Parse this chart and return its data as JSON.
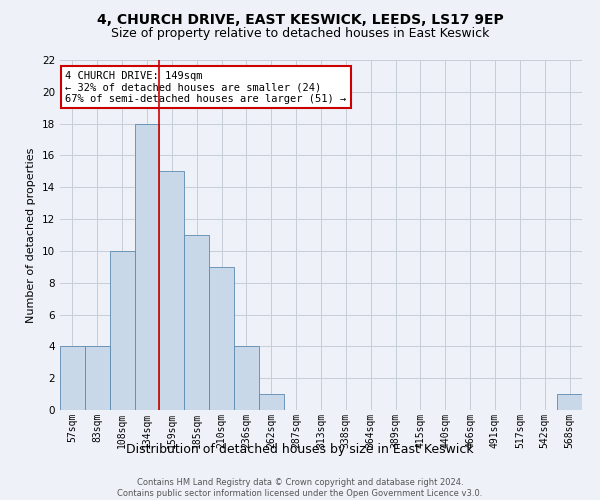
{
  "title": "4, CHURCH DRIVE, EAST KESWICK, LEEDS, LS17 9EP",
  "subtitle": "Size of property relative to detached houses in East Keswick",
  "xlabel": "Distribution of detached houses by size in East Keswick",
  "ylabel": "Number of detached properties",
  "categories": [
    "57sqm",
    "83sqm",
    "108sqm",
    "134sqm",
    "159sqm",
    "185sqm",
    "210sqm",
    "236sqm",
    "262sqm",
    "287sqm",
    "313sqm",
    "338sqm",
    "364sqm",
    "389sqm",
    "415sqm",
    "440sqm",
    "466sqm",
    "491sqm",
    "517sqm",
    "542sqm",
    "568sqm"
  ],
  "values": [
    4,
    4,
    10,
    18,
    15,
    11,
    9,
    4,
    1,
    0,
    0,
    0,
    0,
    0,
    0,
    0,
    0,
    0,
    0,
    0,
    1
  ],
  "bar_color": "#c8d8e8",
  "bar_edge_color": "#5b8ab0",
  "ylim": [
    0,
    22
  ],
  "yticks": [
    0,
    2,
    4,
    6,
    8,
    10,
    12,
    14,
    16,
    18,
    20,
    22
  ],
  "property_bar_index": 3,
  "red_line_color": "#cc0000",
  "annotation_line1": "4 CHURCH DRIVE: 149sqm",
  "annotation_line2": "← 32% of detached houses are smaller (24)",
  "annotation_line3": "67% of semi-detached houses are larger (51) →",
  "annotation_box_edge_color": "#cc0000",
  "footer_line1": "Contains HM Land Registry data © Crown copyright and database right 2024.",
  "footer_line2": "Contains public sector information licensed under the Open Government Licence v3.0.",
  "background_color": "#eef2f8",
  "grid_color": "#c5cdd8",
  "title_fontsize": 10,
  "subtitle_fontsize": 9,
  "ylabel_fontsize": 8,
  "xlabel_fontsize": 9,
  "tick_fontsize": 7,
  "annotation_fontsize": 7.5,
  "footer_fontsize": 6
}
